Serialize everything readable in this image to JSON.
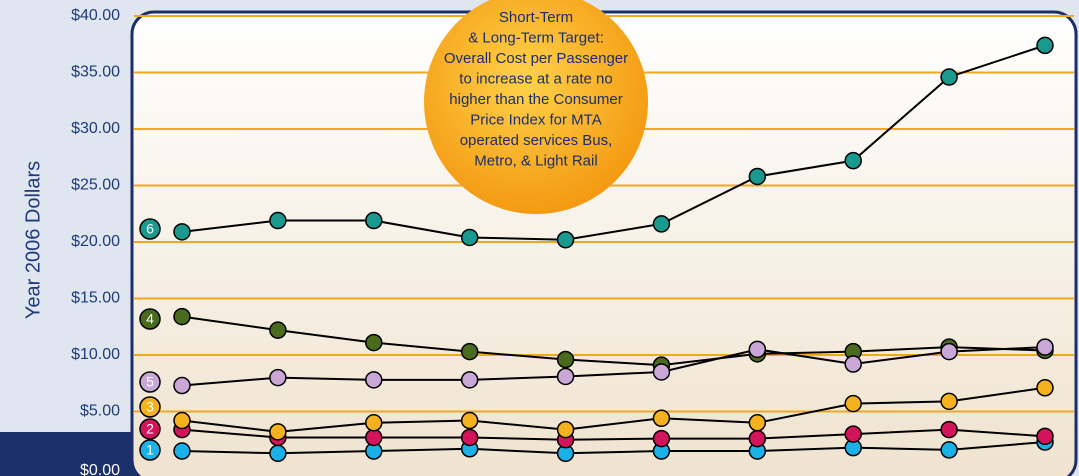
{
  "chart_data": {
    "type": "line",
    "y_label": "Year 2006 Dollars",
    "annotation": [
      "Short-Term",
      "& Long-Term Target:",
      "Overall Cost per Passenger",
      "to increase at a rate no",
      "higher than the Consumer",
      "Price Index for MTA",
      "operated services Bus,",
      "Metro, & Light Rail"
    ],
    "categories": [
      null,
      null,
      null,
      null,
      null,
      null,
      null,
      null,
      null,
      null
    ],
    "series": [
      {
        "name": "1",
        "color": "#1ab0e8",
        "values": [
          1.5,
          1.3,
          1.5,
          1.7,
          1.3,
          1.5,
          1.5,
          1.8,
          1.6,
          2.3
        ]
      },
      {
        "name": "2",
        "color": "#d4145a",
        "values": [
          3.4,
          2.7,
          2.7,
          2.7,
          2.5,
          2.6,
          2.6,
          3.0,
          3.4,
          2.8
        ]
      },
      {
        "name": "3",
        "color": "#f5b21e",
        "values": [
          4.2,
          3.2,
          4.0,
          4.2,
          3.4,
          4.4,
          4.0,
          5.7,
          5.9,
          7.1
        ]
      },
      {
        "name": "4",
        "color": "#4a6b1e",
        "values": [
          13.4,
          12.2,
          11.1,
          10.3,
          9.6,
          9.1,
          10.1,
          10.3,
          10.7,
          10.4
        ]
      },
      {
        "name": "5",
        "color": "#c9a8d8",
        "values": [
          7.3,
          8.0,
          7.8,
          7.8,
          8.1,
          8.5,
          10.5,
          9.2,
          10.3,
          10.7
        ]
      },
      {
        "name": "6",
        "color": "#1a9a8e",
        "values": [
          20.9,
          21.9,
          21.9,
          20.4,
          20.2,
          21.6,
          25.8,
          27.2,
          34.6,
          37.4
        ]
      }
    ],
    "ylim": [
      0,
      40
    ],
    "yticks": [
      {
        "value": 0,
        "label": "$0.00"
      },
      {
        "value": 5,
        "label": "$5.00"
      },
      {
        "value": 10,
        "label": "$10.00"
      },
      {
        "value": 15,
        "label": "$15.00"
      },
      {
        "value": 20,
        "label": "$20.00"
      },
      {
        "value": 25,
        "label": "$25.00"
      },
      {
        "value": 30,
        "label": "$30.00"
      },
      {
        "value": 35,
        "label": "$35.00"
      },
      {
        "value": 40,
        "label": "$40.00"
      }
    ],
    "grid": true
  }
}
